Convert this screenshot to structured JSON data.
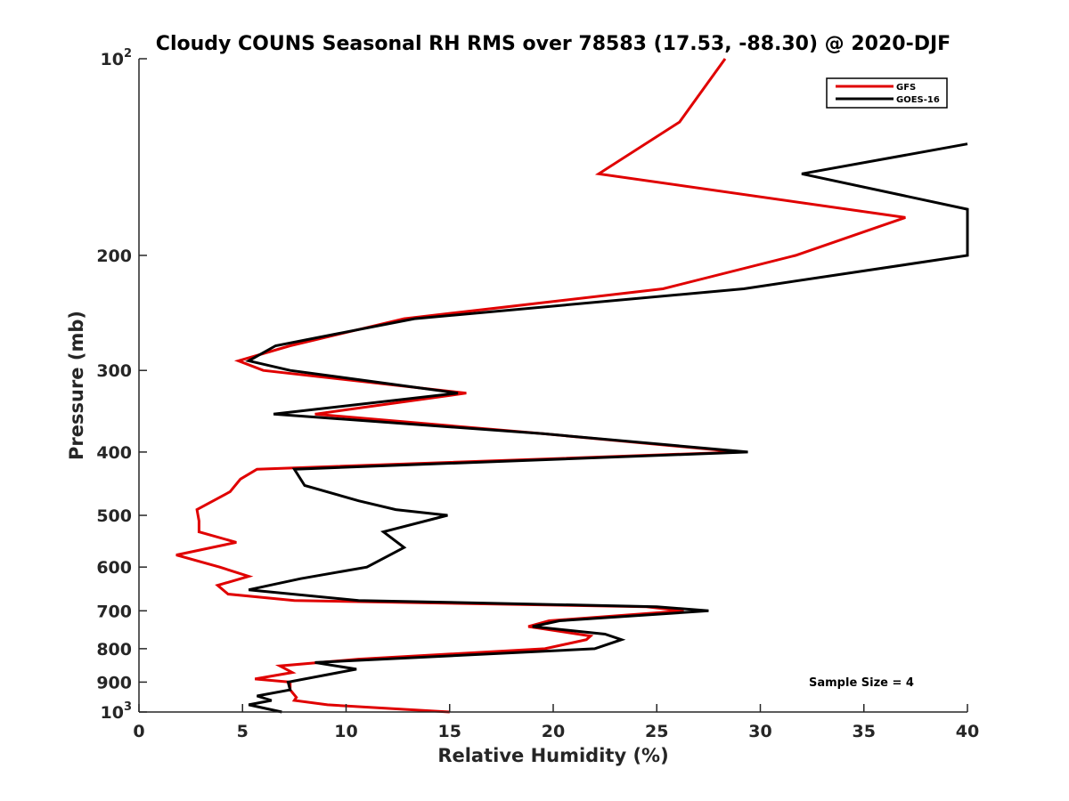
{
  "chart_data": {
    "type": "line",
    "title": "Cloudy COUNS Seasonal RH RMS over 78583 (17.53, -88.30) @ 2020-DJF",
    "xlabel": "Relative Humidity (%)",
    "ylabel": "Pressure (mb)",
    "xlim": [
      0,
      40
    ],
    "ylim": [
      100,
      1000
    ],
    "yscale": "log",
    "yreversed": true,
    "x_ticks": [
      "0",
      "5",
      "10",
      "15",
      "20",
      "25",
      "30",
      "35",
      "40"
    ],
    "y_ticks": [
      {
        "value": 100,
        "base": "10",
        "exp": "2"
      },
      {
        "value": 200,
        "label": "200"
      },
      {
        "value": 300,
        "label": "300"
      },
      {
        "value": 400,
        "label": "400"
      },
      {
        "value": 500,
        "label": "500"
      },
      {
        "value": 600,
        "label": "600"
      },
      {
        "value": 700,
        "label": "700"
      },
      {
        "value": 800,
        "label": "800"
      },
      {
        "value": 900,
        "label": "900"
      },
      {
        "value": 1000,
        "base": "10",
        "exp": "3"
      }
    ],
    "legend": {
      "position": "top-right",
      "entries": [
        "GFS",
        "GOES-16"
      ]
    },
    "annotation": "Sample Size = 4",
    "series": [
      {
        "name": "GFS",
        "color": "#e00000",
        "points": [
          [
            28.3,
            100
          ],
          [
            26.1,
            125
          ],
          [
            22.2,
            150
          ],
          [
            37.0,
            175
          ],
          [
            31.7,
            200
          ],
          [
            25.3,
            225
          ],
          [
            12.8,
            250
          ],
          [
            7.3,
            275
          ],
          [
            4.8,
            290
          ],
          [
            6.0,
            300
          ],
          [
            15.8,
            325
          ],
          [
            8.5,
            350
          ],
          [
            19.5,
            375
          ],
          [
            29.0,
            400
          ],
          [
            5.7,
            425
          ],
          [
            4.9,
            440
          ],
          [
            4.4,
            460
          ],
          [
            2.8,
            490
          ],
          [
            2.9,
            510
          ],
          [
            2.9,
            530
          ],
          [
            4.7,
            550
          ],
          [
            1.8,
            575
          ],
          [
            3.9,
            600
          ],
          [
            5.3,
            620
          ],
          [
            3.8,
            640
          ],
          [
            4.3,
            660
          ],
          [
            7.5,
            675
          ],
          [
            24.5,
            690
          ],
          [
            26.3,
            700
          ],
          [
            19.8,
            725
          ],
          [
            18.8,
            740
          ],
          [
            21.8,
            765
          ],
          [
            21.6,
            775
          ],
          [
            19.6,
            800
          ],
          [
            10.6,
            830
          ],
          [
            6.8,
            850
          ],
          [
            7.4,
            870
          ],
          [
            5.6,
            890
          ],
          [
            7.3,
            900
          ],
          [
            7.3,
            925
          ],
          [
            7.6,
            950
          ],
          [
            7.5,
            960
          ],
          [
            9.1,
            975
          ],
          [
            15.0,
            1000
          ]
        ]
      },
      {
        "name": "GOES-16",
        "color": "#000000",
        "points": [
          [
            40.0,
            135
          ],
          [
            32.0,
            150
          ],
          [
            40.0,
            170
          ],
          [
            40.0,
            200
          ],
          [
            29.2,
            225
          ],
          [
            13.3,
            250
          ],
          [
            6.6,
            275
          ],
          [
            5.3,
            290
          ],
          [
            7.3,
            300
          ],
          [
            15.4,
            325
          ],
          [
            6.5,
            350
          ],
          [
            19.5,
            375
          ],
          [
            29.4,
            400
          ],
          [
            7.5,
            425
          ],
          [
            8.0,
            450
          ],
          [
            10.6,
            475
          ],
          [
            12.4,
            490
          ],
          [
            14.9,
            500
          ],
          [
            11.8,
            530
          ],
          [
            12.8,
            560
          ],
          [
            11.0,
            600
          ],
          [
            7.8,
            625
          ],
          [
            5.3,
            650
          ],
          [
            10.6,
            675
          ],
          [
            25.0,
            690
          ],
          [
            27.5,
            700
          ],
          [
            20.3,
            725
          ],
          [
            19.0,
            740
          ],
          [
            22.5,
            760
          ],
          [
            23.3,
            775
          ],
          [
            22.0,
            800
          ],
          [
            8.5,
            840
          ],
          [
            10.5,
            860
          ],
          [
            7.2,
            900
          ],
          [
            7.3,
            925
          ],
          [
            5.7,
            945
          ],
          [
            6.4,
            960
          ],
          [
            5.3,
            975
          ],
          [
            6.9,
            1000
          ]
        ]
      }
    ]
  }
}
